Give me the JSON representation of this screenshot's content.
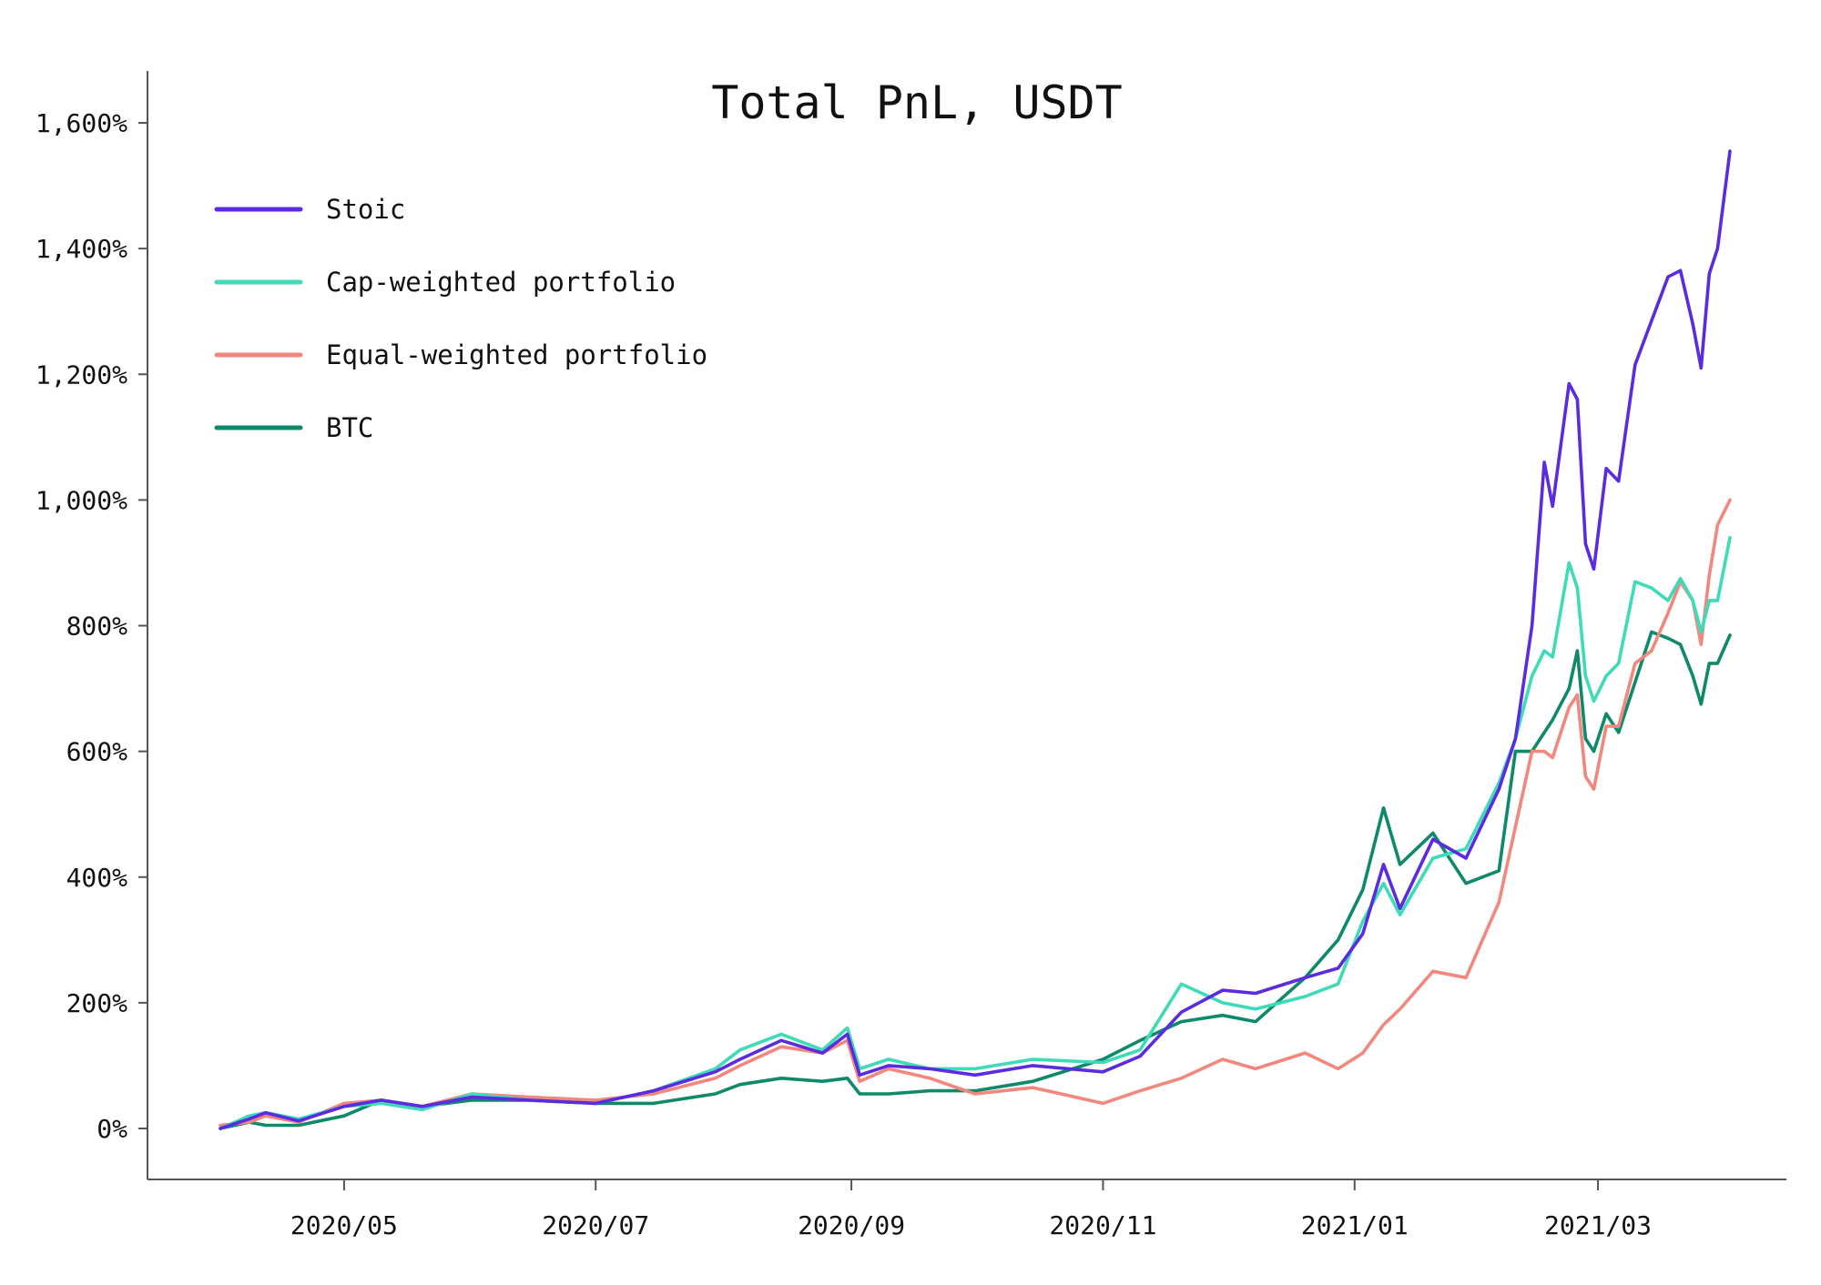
{
  "chart_data": {
    "type": "line",
    "title": "Total PnL, USDT",
    "xlabel": "",
    "ylabel": "",
    "ylim": [
      -80,
      1680
    ],
    "xlim": [
      "2020-03-25",
      "2021-04-08"
    ],
    "grid": false,
    "legend_position": "top-left",
    "y_ticks": [
      {
        "value": 0,
        "label": "0%"
      },
      {
        "value": 200,
        "label": "200%"
      },
      {
        "value": 400,
        "label": "400%"
      },
      {
        "value": 600,
        "label": "600%"
      },
      {
        "value": 800,
        "label": "800%"
      },
      {
        "value": 1000,
        "label": "1,000%"
      },
      {
        "value": 1200,
        "label": "1,200%"
      },
      {
        "value": 1400,
        "label": "1,400%"
      },
      {
        "value": 1600,
        "label": "1,600%"
      }
    ],
    "x_ticks": [
      {
        "date": "2020-05-01",
        "label": "2020/05"
      },
      {
        "date": "2020-07-01",
        "label": "2020/07"
      },
      {
        "date": "2020-09-01",
        "label": "2020/09"
      },
      {
        "date": "2020-11-01",
        "label": "2020/11"
      },
      {
        "date": "2021-01-01",
        "label": "2021/01"
      },
      {
        "date": "2021-03-01",
        "label": "2021/03"
      }
    ],
    "series": [
      {
        "name": "Stoic",
        "color": "#5b2be0",
        "points": [
          [
            "2020-04-01",
            0
          ],
          [
            "2020-04-08",
            15
          ],
          [
            "2020-04-12",
            25
          ],
          [
            "2020-04-20",
            12
          ],
          [
            "2020-05-01",
            35
          ],
          [
            "2020-05-10",
            45
          ],
          [
            "2020-05-20",
            35
          ],
          [
            "2020-06-01",
            50
          ],
          [
            "2020-06-15",
            45
          ],
          [
            "2020-07-01",
            40
          ],
          [
            "2020-07-15",
            60
          ],
          [
            "2020-07-30",
            90
          ],
          [
            "2020-08-05",
            110
          ],
          [
            "2020-08-15",
            140
          ],
          [
            "2020-08-25",
            120
          ],
          [
            "2020-08-31",
            150
          ],
          [
            "2020-09-03",
            85
          ],
          [
            "2020-09-10",
            100
          ],
          [
            "2020-09-20",
            95
          ],
          [
            "2020-10-01",
            85
          ],
          [
            "2020-10-15",
            100
          ],
          [
            "2020-11-01",
            90
          ],
          [
            "2020-11-10",
            115
          ],
          [
            "2020-11-20",
            185
          ],
          [
            "2020-11-30",
            220
          ],
          [
            "2020-12-08",
            215
          ],
          [
            "2020-12-20",
            240
          ],
          [
            "2020-12-28",
            255
          ],
          [
            "2021-01-03",
            310
          ],
          [
            "2021-01-08",
            420
          ],
          [
            "2021-01-12",
            350
          ],
          [
            "2021-01-20",
            460
          ],
          [
            "2021-01-28",
            430
          ],
          [
            "2021-02-05",
            540
          ],
          [
            "2021-02-09",
            620
          ],
          [
            "2021-02-13",
            800
          ],
          [
            "2021-02-16",
            1060
          ],
          [
            "2021-02-18",
            990
          ],
          [
            "2021-02-22",
            1185
          ],
          [
            "2021-02-24",
            1160
          ],
          [
            "2021-02-26",
            930
          ],
          [
            "2021-02-28",
            890
          ],
          [
            "2021-03-03",
            1050
          ],
          [
            "2021-03-06",
            1030
          ],
          [
            "2021-03-10",
            1215
          ],
          [
            "2021-03-14",
            1285
          ],
          [
            "2021-03-18",
            1355
          ],
          [
            "2021-03-21",
            1365
          ],
          [
            "2021-03-24",
            1280
          ],
          [
            "2021-03-26",
            1210
          ],
          [
            "2021-03-28",
            1360
          ],
          [
            "2021-03-30",
            1400
          ],
          [
            "2021-04-02",
            1555
          ]
        ]
      },
      {
        "name": "Cap-weighted portfolio",
        "color": "#3ddbb8",
        "points": [
          [
            "2020-04-01",
            0
          ],
          [
            "2020-04-08",
            20
          ],
          [
            "2020-04-12",
            25
          ],
          [
            "2020-04-20",
            15
          ],
          [
            "2020-05-01",
            35
          ],
          [
            "2020-05-10",
            40
          ],
          [
            "2020-05-20",
            30
          ],
          [
            "2020-06-01",
            55
          ],
          [
            "2020-06-15",
            45
          ],
          [
            "2020-07-01",
            40
          ],
          [
            "2020-07-15",
            60
          ],
          [
            "2020-07-30",
            95
          ],
          [
            "2020-08-05",
            125
          ],
          [
            "2020-08-15",
            150
          ],
          [
            "2020-08-25",
            125
          ],
          [
            "2020-08-31",
            160
          ],
          [
            "2020-09-03",
            95
          ],
          [
            "2020-09-10",
            110
          ],
          [
            "2020-09-20",
            95
          ],
          [
            "2020-10-01",
            95
          ],
          [
            "2020-10-15",
            110
          ],
          [
            "2020-11-01",
            105
          ],
          [
            "2020-11-10",
            125
          ],
          [
            "2020-11-20",
            230
          ],
          [
            "2020-11-30",
            200
          ],
          [
            "2020-12-08",
            190
          ],
          [
            "2020-12-20",
            210
          ],
          [
            "2020-12-28",
            230
          ],
          [
            "2021-01-03",
            330
          ],
          [
            "2021-01-08",
            390
          ],
          [
            "2021-01-12",
            340
          ],
          [
            "2021-01-20",
            430
          ],
          [
            "2021-01-28",
            445
          ],
          [
            "2021-02-05",
            550
          ],
          [
            "2021-02-09",
            620
          ],
          [
            "2021-02-13",
            720
          ],
          [
            "2021-02-16",
            760
          ],
          [
            "2021-02-18",
            750
          ],
          [
            "2021-02-22",
            900
          ],
          [
            "2021-02-24",
            860
          ],
          [
            "2021-02-26",
            720
          ],
          [
            "2021-02-28",
            680
          ],
          [
            "2021-03-03",
            720
          ],
          [
            "2021-03-06",
            740
          ],
          [
            "2021-03-10",
            870
          ],
          [
            "2021-03-14",
            860
          ],
          [
            "2021-03-18",
            840
          ],
          [
            "2021-03-21",
            875
          ],
          [
            "2021-03-24",
            840
          ],
          [
            "2021-03-26",
            790
          ],
          [
            "2021-03-28",
            840
          ],
          [
            "2021-03-30",
            840
          ],
          [
            "2021-04-02",
            940
          ]
        ]
      },
      {
        "name": "Equal-weighted portfolio",
        "color": "#f2877d",
        "points": [
          [
            "2020-04-01",
            5
          ],
          [
            "2020-04-08",
            10
          ],
          [
            "2020-04-12",
            20
          ],
          [
            "2020-04-20",
            10
          ],
          [
            "2020-05-01",
            40
          ],
          [
            "2020-05-10",
            45
          ],
          [
            "2020-05-20",
            35
          ],
          [
            "2020-06-01",
            55
          ],
          [
            "2020-06-15",
            50
          ],
          [
            "2020-07-01",
            45
          ],
          [
            "2020-07-15",
            55
          ],
          [
            "2020-07-30",
            80
          ],
          [
            "2020-08-05",
            100
          ],
          [
            "2020-08-15",
            130
          ],
          [
            "2020-08-25",
            120
          ],
          [
            "2020-08-31",
            140
          ],
          [
            "2020-09-03",
            75
          ],
          [
            "2020-09-10",
            95
          ],
          [
            "2020-09-20",
            80
          ],
          [
            "2020-10-01",
            55
          ],
          [
            "2020-10-15",
            65
          ],
          [
            "2020-11-01",
            40
          ],
          [
            "2020-11-10",
            60
          ],
          [
            "2020-11-20",
            80
          ],
          [
            "2020-11-30",
            110
          ],
          [
            "2020-12-08",
            95
          ],
          [
            "2020-12-20",
            120
          ],
          [
            "2020-12-28",
            95
          ],
          [
            "2021-01-03",
            120
          ],
          [
            "2021-01-08",
            165
          ],
          [
            "2021-01-12",
            190
          ],
          [
            "2021-01-20",
            250
          ],
          [
            "2021-01-28",
            240
          ],
          [
            "2021-02-05",
            360
          ],
          [
            "2021-02-09",
            480
          ],
          [
            "2021-02-13",
            600
          ],
          [
            "2021-02-16",
            600
          ],
          [
            "2021-02-18",
            590
          ],
          [
            "2021-02-22",
            670
          ],
          [
            "2021-02-24",
            690
          ],
          [
            "2021-02-26",
            560
          ],
          [
            "2021-02-28",
            540
          ],
          [
            "2021-03-03",
            640
          ],
          [
            "2021-03-06",
            640
          ],
          [
            "2021-03-10",
            740
          ],
          [
            "2021-03-14",
            760
          ],
          [
            "2021-03-18",
            820
          ],
          [
            "2021-03-21",
            870
          ],
          [
            "2021-03-24",
            840
          ],
          [
            "2021-03-26",
            770
          ],
          [
            "2021-03-28",
            880
          ],
          [
            "2021-03-30",
            960
          ],
          [
            "2021-04-02",
            1000
          ]
        ]
      },
      {
        "name": "BTC",
        "color": "#0e8a6a",
        "points": [
          [
            "2020-04-01",
            0
          ],
          [
            "2020-04-08",
            10
          ],
          [
            "2020-04-12",
            5
          ],
          [
            "2020-04-20",
            5
          ],
          [
            "2020-05-01",
            20
          ],
          [
            "2020-05-10",
            45
          ],
          [
            "2020-05-20",
            35
          ],
          [
            "2020-06-01",
            45
          ],
          [
            "2020-06-15",
            45
          ],
          [
            "2020-07-01",
            40
          ],
          [
            "2020-07-15",
            40
          ],
          [
            "2020-07-30",
            55
          ],
          [
            "2020-08-05",
            70
          ],
          [
            "2020-08-15",
            80
          ],
          [
            "2020-08-25",
            75
          ],
          [
            "2020-08-31",
            80
          ],
          [
            "2020-09-03",
            55
          ],
          [
            "2020-09-10",
            55
          ],
          [
            "2020-09-20",
            60
          ],
          [
            "2020-10-01",
            60
          ],
          [
            "2020-10-15",
            75
          ],
          [
            "2020-11-01",
            110
          ],
          [
            "2020-11-10",
            140
          ],
          [
            "2020-11-20",
            170
          ],
          [
            "2020-11-30",
            180
          ],
          [
            "2020-12-08",
            170
          ],
          [
            "2020-12-20",
            240
          ],
          [
            "2020-12-28",
            300
          ],
          [
            "2021-01-03",
            380
          ],
          [
            "2021-01-08",
            510
          ],
          [
            "2021-01-12",
            420
          ],
          [
            "2021-01-20",
            470
          ],
          [
            "2021-01-28",
            390
          ],
          [
            "2021-02-05",
            410
          ],
          [
            "2021-02-09",
            600
          ],
          [
            "2021-02-13",
            600
          ],
          [
            "2021-02-16",
            630
          ],
          [
            "2021-02-18",
            650
          ],
          [
            "2021-02-22",
            700
          ],
          [
            "2021-02-24",
            760
          ],
          [
            "2021-02-26",
            620
          ],
          [
            "2021-02-28",
            600
          ],
          [
            "2021-03-03",
            660
          ],
          [
            "2021-03-06",
            630
          ],
          [
            "2021-03-10",
            710
          ],
          [
            "2021-03-14",
            790
          ],
          [
            "2021-03-18",
            780
          ],
          [
            "2021-03-21",
            770
          ],
          [
            "2021-03-24",
            720
          ],
          [
            "2021-03-26",
            675
          ],
          [
            "2021-03-28",
            740
          ],
          [
            "2021-03-30",
            740
          ],
          [
            "2021-04-02",
            785
          ]
        ]
      }
    ]
  }
}
